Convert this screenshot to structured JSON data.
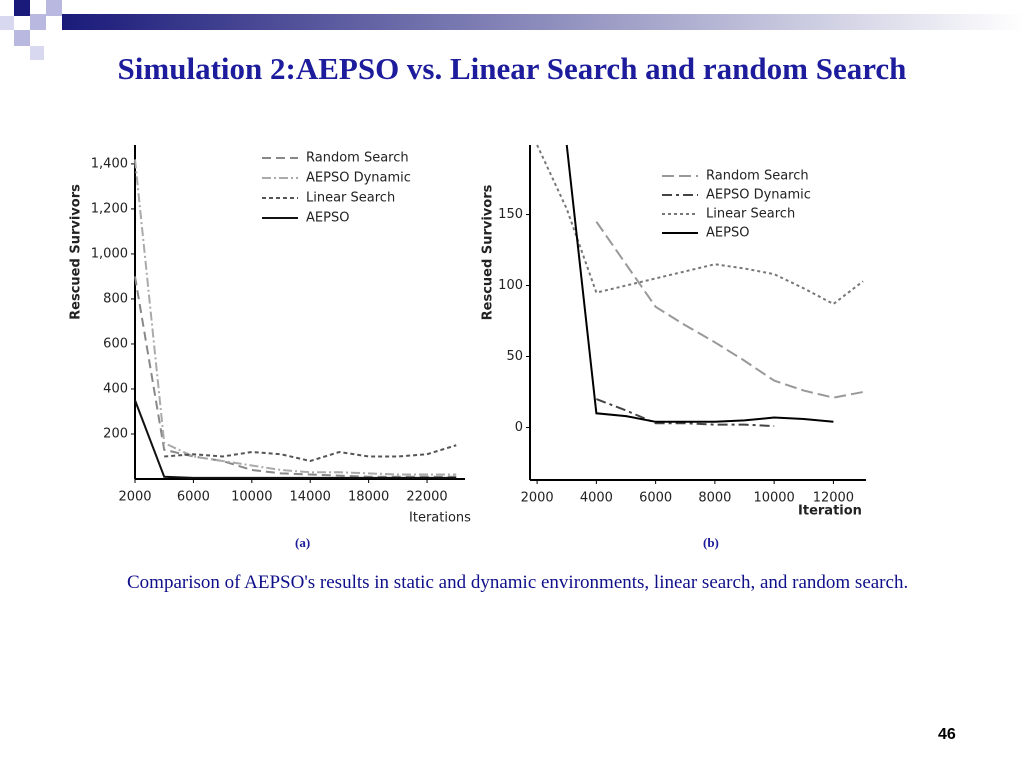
{
  "title": "Simulation 2:AEPSO vs. Linear Search and random Search",
  "labels": [
    "(a)",
    "(b)"
  ],
  "caption": "Comparison of AEPSO's results in static and dynamic environments, linear search, and random search.",
  "page_number": "46",
  "chart_data": [
    {
      "type": "line",
      "x_label": "Iterations",
      "y_label": "Rescued Survivors",
      "x": [
        2000,
        4000,
        6000,
        8000,
        10000,
        12000,
        14000,
        16000,
        18000,
        20000,
        22000,
        24000
      ],
      "xlim": [
        2000,
        24600
      ],
      "ylim": [
        0,
        1484
      ],
      "xticks": [
        2000,
        6000,
        10000,
        14000,
        18000,
        22000
      ],
      "yticks": [
        200,
        400,
        600,
        800,
        {
          "value": 1000,
          "label": "1,000"
        },
        {
          "value": 1200,
          "label": "1,200"
        },
        {
          "value": 1400,
          "label": "1,400"
        }
      ],
      "series": [
        {
          "name": "Random Search",
          "color": "#888888",
          "dash": "9,5",
          "values": [
            900,
            130,
            100,
            80,
            40,
            25,
            20,
            15,
            10,
            10,
            10,
            10
          ]
        },
        {
          "name": "AEPSO Dynamic",
          "color": "#aaaaaa",
          "dash": "9,3,2,3",
          "values": [
            1420,
            160,
            100,
            80,
            60,
            40,
            30,
            30,
            25,
            20,
            20,
            20
          ]
        },
        {
          "name": "Linear Search",
          "color": "#555555",
          "dash": "4,3",
          "values": [
            null,
            100,
            110,
            100,
            120,
            110,
            80,
            120,
            100,
            100,
            110,
            150
          ]
        },
        {
          "name": "AEPSO",
          "color": "#111111",
          "dash": "none",
          "values": [
            350,
            10,
            5,
            5,
            5,
            5,
            5,
            5,
            5,
            5,
            5,
            5
          ]
        }
      ]
    },
    {
      "type": "line",
      "x_label": "Iteration",
      "y_label": "Rescued Survivors",
      "x": [
        2000,
        3000,
        4000,
        5000,
        6000,
        7000,
        8000,
        9000,
        10000,
        11000,
        12000,
        13000
      ],
      "xlim": [
        1760,
        13100
      ],
      "ylim": [
        -37,
        199
      ],
      "xticks": [
        2000,
        4000,
        6000,
        8000,
        10000,
        12000
      ],
      "yticks": [
        0,
        50,
        100,
        150
      ],
      "series": [
        {
          "name": "Random Search",
          "color": "#999999",
          "dash": "12,5",
          "values": [
            null,
            null,
            145,
            115,
            85,
            72,
            60,
            47,
            33,
            26,
            21,
            25
          ]
        },
        {
          "name": "AEPSO Dynamic",
          "color": "#444444",
          "dash": "10,4,3,4",
          "values": [
            null,
            null,
            20,
            12,
            3,
            3,
            2,
            2,
            1,
            null,
            null,
            null
          ]
        },
        {
          "name": "Linear Search",
          "color": "#777777",
          "dash": "3,3",
          "values": [
            199,
            154,
            95,
            100,
            105,
            110,
            115,
            112,
            108,
            98,
            87,
            103
          ]
        },
        {
          "name": "AEPSO",
          "color": "#000000",
          "dash": "none",
          "values": [
            null,
            199,
            10,
            8,
            4,
            4,
            4,
            5,
            7,
            6,
            4,
            null
          ]
        }
      ]
    }
  ]
}
